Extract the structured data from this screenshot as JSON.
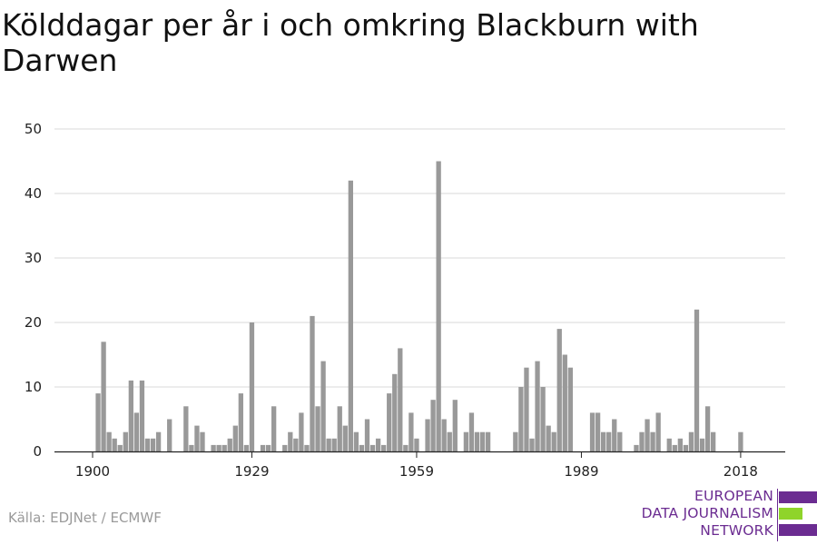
{
  "title": "Kölddagar per år i och omkring Blackburn with Darwen",
  "source": "Källa: EDJNet / ECMWF",
  "logo": {
    "lines": [
      "EUROPEAN",
      "DATA JOURNALISM",
      "NETWORK"
    ],
    "colors": {
      "purple": "#6b2c91",
      "green": "#8fd42a"
    }
  },
  "chart_data": {
    "type": "bar",
    "xlabel": "",
    "ylabel": "",
    "ylim": [
      0,
      50
    ],
    "yticks": [
      0,
      10,
      20,
      30,
      40,
      50
    ],
    "xticks": [
      1900,
      1929,
      1959,
      1989,
      2018
    ],
    "grid": true,
    "bar_color": "#999999",
    "x": [
      1900,
      1901,
      1902,
      1903,
      1904,
      1905,
      1906,
      1907,
      1908,
      1909,
      1910,
      1911,
      1912,
      1913,
      1914,
      1915,
      1916,
      1917,
      1918,
      1919,
      1920,
      1921,
      1922,
      1923,
      1924,
      1925,
      1926,
      1927,
      1928,
      1929,
      1930,
      1931,
      1932,
      1933,
      1934,
      1935,
      1936,
      1937,
      1938,
      1939,
      1940,
      1941,
      1942,
      1943,
      1944,
      1945,
      1946,
      1947,
      1948,
      1949,
      1950,
      1951,
      1952,
      1953,
      1954,
      1955,
      1956,
      1957,
      1958,
      1959,
      1960,
      1961,
      1962,
      1963,
      1964,
      1965,
      1966,
      1967,
      1968,
      1969,
      1970,
      1971,
      1972,
      1973,
      1974,
      1975,
      1976,
      1977,
      1978,
      1979,
      1980,
      1981,
      1982,
      1983,
      1984,
      1985,
      1986,
      1987,
      1988,
      1989,
      1990,
      1991,
      1992,
      1993,
      1994,
      1995,
      1996,
      1997,
      1998,
      1999,
      2000,
      2001,
      2002,
      2003,
      2004,
      2005,
      2006,
      2007,
      2008,
      2009,
      2010,
      2011,
      2012,
      2013,
      2014,
      2015,
      2016,
      2017,
      2018,
      2019,
      2020
    ],
    "values": [
      0,
      9,
      17,
      3,
      2,
      1,
      3,
      11,
      6,
      11,
      2,
      2,
      3,
      0,
      5,
      0,
      0,
      7,
      1,
      4,
      3,
      0,
      1,
      1,
      1,
      2,
      4,
      9,
      1,
      20,
      0,
      1,
      1,
      7,
      0,
      1,
      3,
      2,
      6,
      1,
      21,
      7,
      14,
      2,
      2,
      7,
      4,
      42,
      3,
      1,
      5,
      1,
      2,
      1,
      9,
      12,
      16,
      1,
      6,
      2,
      0,
      5,
      8,
      45,
      5,
      3,
      8,
      0,
      3,
      6,
      3,
      3,
      3,
      0,
      0,
      0,
      0,
      3,
      10,
      13,
      2,
      14,
      10,
      4,
      3,
      19,
      15,
      13,
      0,
      0,
      0,
      6,
      6,
      3,
      3,
      5,
      3,
      0,
      0,
      1,
      3,
      5,
      3,
      6,
      0,
      2,
      1,
      2,
      1,
      3,
      22,
      2,
      7,
      3,
      0,
      0,
      0,
      0,
      3,
      0,
      0
    ]
  }
}
